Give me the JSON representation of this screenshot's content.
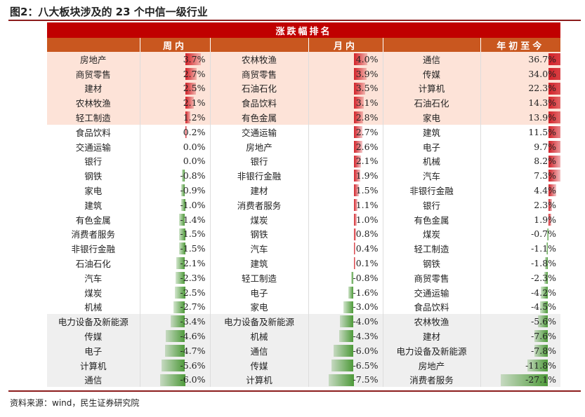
{
  "figure_title": "图2：八大板块涉及的 23 个中信一级行业",
  "table_title": "涨跌幅排名",
  "columns": [
    "周内",
    "月内",
    "年初至今"
  ],
  "source": "资料来源：wind，民生证券研究院",
  "colors": {
    "banner": "#c00000",
    "header": "#c9571f",
    "positive_bar": "#d2232a",
    "negative_bar": "#4e9a3a",
    "top_band": "#fde3d8",
    "bottom_band": "#efefef"
  },
  "rows": [
    {
      "w_name": "房地产",
      "w_val": "3.7%",
      "w_num": 3.7,
      "m_name": "农林牧渔",
      "m_val": "4.0%",
      "m_num": 4.0,
      "y_name": "通信",
      "y_val": "36.7%",
      "y_num": 36.7
    },
    {
      "w_name": "商贸零售",
      "w_val": "2.7%",
      "w_num": 2.7,
      "m_name": "商贸零售",
      "m_val": "3.9%",
      "m_num": 3.9,
      "y_name": "传媒",
      "y_val": "34.0%",
      "y_num": 34.0
    },
    {
      "w_name": "建材",
      "w_val": "2.5%",
      "w_num": 2.5,
      "m_name": "石油石化",
      "m_val": "3.5%",
      "m_num": 3.5,
      "y_name": "计算机",
      "y_val": "22.3%",
      "y_num": 22.3
    },
    {
      "w_name": "农林牧渔",
      "w_val": "2.1%",
      "w_num": 2.1,
      "m_name": "食品饮料",
      "m_val": "3.1%",
      "m_num": 3.1,
      "y_name": "石油石化",
      "y_val": "14.3%",
      "y_num": 14.3
    },
    {
      "w_name": "轻工制造",
      "w_val": "1.2%",
      "w_num": 1.2,
      "m_name": "有色金属",
      "m_val": "2.8%",
      "m_num": 2.8,
      "y_name": "家电",
      "y_val": "13.9%",
      "y_num": 13.9
    },
    {
      "w_name": "食品饮料",
      "w_val": "0.2%",
      "w_num": 0.2,
      "m_name": "交通运输",
      "m_val": "2.7%",
      "m_num": 2.7,
      "y_name": "建筑",
      "y_val": "11.5%",
      "y_num": 11.5
    },
    {
      "w_name": "交通运输",
      "w_val": "0.0%",
      "w_num": 0.0,
      "m_name": "房地产",
      "m_val": "2.6%",
      "m_num": 2.6,
      "y_name": "电子",
      "y_val": "9.7%",
      "y_num": 9.7
    },
    {
      "w_name": "银行",
      "w_val": "0.0%",
      "w_num": 0.0,
      "m_name": "银行",
      "m_val": "2.1%",
      "m_num": 2.1,
      "y_name": "机械",
      "y_val": "8.2%",
      "y_num": 8.2
    },
    {
      "w_name": "钢铁",
      "w_val": "-0.8%",
      "w_num": -0.8,
      "m_name": "非银行金融",
      "m_val": "1.9%",
      "m_num": 1.9,
      "y_name": "汽车",
      "y_val": "7.3%",
      "y_num": 7.3
    },
    {
      "w_name": "家电",
      "w_val": "-0.9%",
      "w_num": -0.9,
      "m_name": "建材",
      "m_val": "1.5%",
      "m_num": 1.5,
      "y_name": "非银行金融",
      "y_val": "4.4%",
      "y_num": 4.4
    },
    {
      "w_name": "建筑",
      "w_val": "-1.0%",
      "w_num": -1.0,
      "m_name": "消费者服务",
      "m_val": "1.1%",
      "m_num": 1.1,
      "y_name": "银行",
      "y_val": "2.3%",
      "y_num": 2.3
    },
    {
      "w_name": "有色金属",
      "w_val": "-1.4%",
      "w_num": -1.4,
      "m_name": "煤炭",
      "m_val": "1.0%",
      "m_num": 1.0,
      "y_name": "有色金属",
      "y_val": "1.9%",
      "y_num": 1.9
    },
    {
      "w_name": "消费者服务",
      "w_val": "-1.5%",
      "w_num": -1.5,
      "m_name": "钢铁",
      "m_val": "0.8%",
      "m_num": 0.8,
      "y_name": "煤炭",
      "y_val": "-0.7%",
      "y_num": -0.7
    },
    {
      "w_name": "非银行金融",
      "w_val": "-1.5%",
      "w_num": -1.5,
      "m_name": "汽车",
      "m_val": "0.4%",
      "m_num": 0.4,
      "y_name": "轻工制造",
      "y_val": "-1.1%",
      "y_num": -1.1
    },
    {
      "w_name": "石油石化",
      "w_val": "-2.1%",
      "w_num": -2.1,
      "m_name": "建筑",
      "m_val": "0.1%",
      "m_num": 0.1,
      "y_name": "钢铁",
      "y_val": "-1.8%",
      "y_num": -1.8
    },
    {
      "w_name": "汽车",
      "w_val": "-2.3%",
      "w_num": -2.3,
      "m_name": "轻工制造",
      "m_val": "-0.8%",
      "m_num": -0.8,
      "y_name": "商贸零售",
      "y_val": "-2.3%",
      "y_num": -2.3
    },
    {
      "w_name": "煤炭",
      "w_val": "-2.5%",
      "w_num": -2.5,
      "m_name": "电子",
      "m_val": "-1.6%",
      "m_num": -1.6,
      "y_name": "交通运输",
      "y_val": "-4.2%",
      "y_num": -4.2
    },
    {
      "w_name": "机械",
      "w_val": "-2.7%",
      "w_num": -2.7,
      "m_name": "家电",
      "m_val": "-3.0%",
      "m_num": -3.0,
      "y_name": "食品饮料",
      "y_val": "-4.5%",
      "y_num": -4.5
    },
    {
      "w_name": "电力设备及新能源",
      "w_val": "-3.4%",
      "w_num": -3.4,
      "m_name": "电力设备及新能源",
      "m_val": "-4.0%",
      "m_num": -4.0,
      "y_name": "农林牧渔",
      "y_val": "-5.6%",
      "y_num": -5.6
    },
    {
      "w_name": "传媒",
      "w_val": "-4.6%",
      "w_num": -4.6,
      "m_name": "机械",
      "m_val": "-4.3%",
      "m_num": -4.3,
      "y_name": "建材",
      "y_val": "-7.6%",
      "y_num": -7.6
    },
    {
      "w_name": "电子",
      "w_val": "-4.7%",
      "w_num": -4.7,
      "m_name": "通信",
      "m_val": "-6.0%",
      "m_num": -6.0,
      "y_name": "电力设备及新能源",
      "y_val": "-7.8%",
      "y_num": -7.8
    },
    {
      "w_name": "计算机",
      "w_val": "-5.6%",
      "w_num": -5.6,
      "m_name": "传媒",
      "m_val": "-6.5%",
      "m_num": -6.5,
      "y_name": "房地产",
      "y_val": "-11.8%",
      "y_num": -11.8
    },
    {
      "w_name": "通信",
      "w_val": "-6.0%",
      "w_num": -6.0,
      "m_name": "计算机",
      "m_val": "-7.5%",
      "m_num": -7.5,
      "y_name": "消费者服务",
      "y_val": "-27.1%",
      "y_num": -27.1
    }
  ]
}
